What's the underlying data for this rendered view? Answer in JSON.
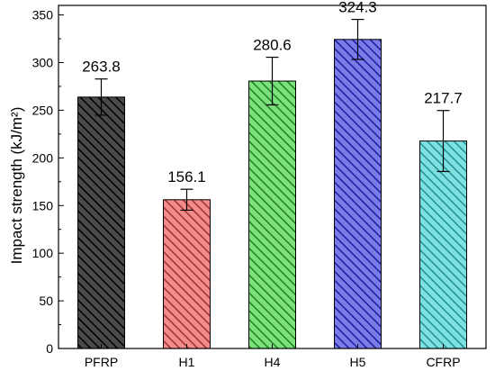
{
  "chart_data": {
    "type": "bar",
    "title": "",
    "xlabel": "",
    "ylabel": "Impact strength (kJ/m²)",
    "ylim": [
      0,
      360
    ],
    "yticks": [
      0,
      50,
      100,
      150,
      200,
      250,
      300,
      350
    ],
    "categories": [
      "PFRP",
      "H1",
      "H4",
      "H5",
      "CFRP"
    ],
    "values": [
      263.8,
      156.1,
      280.6,
      324.3,
      217.7
    ],
    "value_labels": [
      "263.8",
      "156.1",
      "280.6",
      "324.3",
      "217.7"
    ],
    "errors": [
      19,
      11,
      25,
      21,
      32
    ],
    "colors": [
      "#4a4a4a",
      "#f08c8c",
      "#7ce07c",
      "#7b7be8",
      "#7ee0e0"
    ],
    "edge_colors": [
      "#000000",
      "#a03030",
      "#208020",
      "#1c1ca0",
      "#209090"
    ],
    "pattern": "diagonal-hatch",
    "grid": false,
    "legend": "none"
  }
}
